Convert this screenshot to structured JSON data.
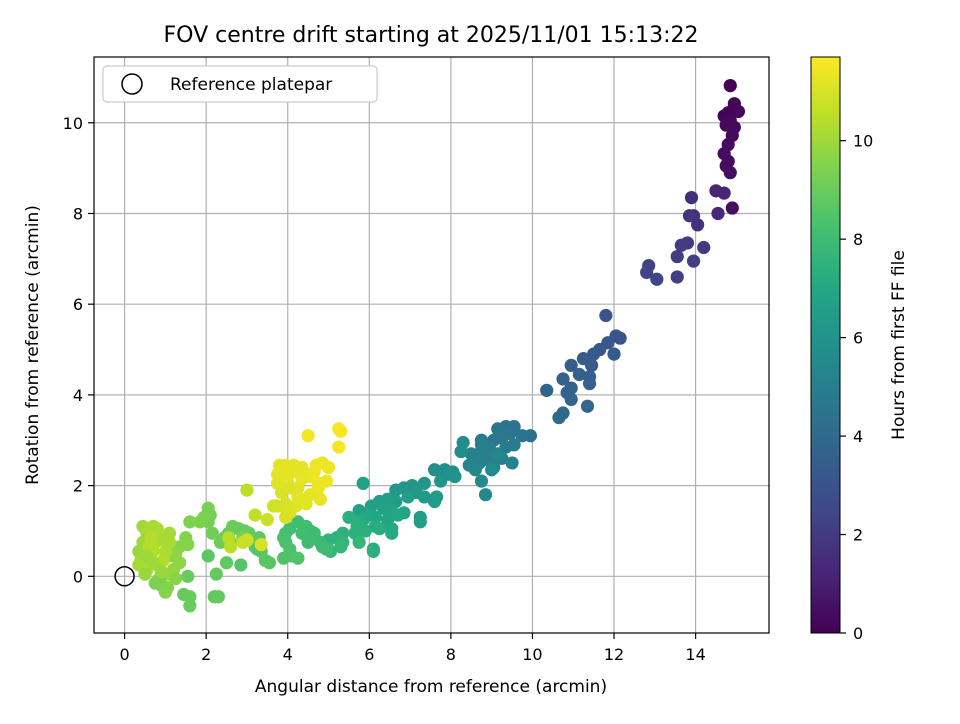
{
  "chart_data": {
    "type": "scatter",
    "title": "FOV centre drift starting at 2025/11/01 15:13:22",
    "xlabel": "Angular distance from reference (arcmin)",
    "ylabel": "Rotation from reference (arcmin)",
    "xlim": [
      -0.75,
      15.8
    ],
    "ylim": [
      -1.25,
      11.45
    ],
    "xticks": [
      0,
      2,
      4,
      6,
      8,
      10,
      12,
      14
    ],
    "yticks": [
      0,
      2,
      4,
      6,
      8,
      10
    ],
    "grid": true,
    "legend": {
      "position": "top-left",
      "entries": [
        "Reference platepar"
      ]
    },
    "reference_point": {
      "label": "Reference platepar",
      "x": 0,
      "y": 0,
      "marker": "open-circle"
    },
    "colorbar": {
      "label": "Hours from first FF file",
      "colormap": "viridis",
      "range": [
        0,
        11.7
      ],
      "ticks": [
        0,
        2,
        4,
        6,
        8,
        10
      ]
    },
    "points": [
      [
        14.85,
        10.82,
        0.05
      ],
      [
        14.8,
        10.22,
        0.08
      ],
      [
        14.95,
        10.42,
        0.12
      ],
      [
        15.05,
        10.25,
        0.15
      ],
      [
        14.7,
        10.15,
        0.18
      ],
      [
        14.85,
        10.05,
        0.22
      ],
      [
        14.75,
        9.95,
        0.25
      ],
      [
        14.95,
        9.9,
        0.28
      ],
      [
        14.9,
        9.72,
        0.3
      ],
      [
        14.8,
        9.52,
        0.32
      ],
      [
        14.7,
        9.32,
        0.35
      ],
      [
        14.8,
        9.15,
        0.38
      ],
      [
        14.75,
        9.05,
        0.4
      ],
      [
        14.85,
        8.9,
        0.42
      ],
      [
        14.9,
        8.12,
        0.45
      ],
      [
        14.5,
        8.5,
        1.2
      ],
      [
        14.7,
        8.45,
        1.3
      ],
      [
        14.55,
        8.0,
        1.35
      ],
      [
        13.9,
        8.35,
        1.5
      ],
      [
        13.95,
        7.95,
        1.6
      ],
      [
        14.05,
        7.75,
        1.7
      ],
      [
        13.85,
        7.95,
        1.8
      ],
      [
        14.2,
        7.25,
        1.9
      ],
      [
        13.8,
        7.35,
        2.0
      ],
      [
        13.65,
        7.3,
        2.05
      ],
      [
        13.55,
        7.05,
        2.1
      ],
      [
        13.95,
        6.95,
        2.15
      ],
      [
        13.55,
        6.6,
        2.2
      ],
      [
        12.85,
        6.85,
        2.3
      ],
      [
        12.8,
        6.7,
        2.35
      ],
      [
        13.05,
        6.55,
        2.4
      ],
      [
        11.8,
        5.75,
        3.0
      ],
      [
        12.05,
        5.3,
        3.1
      ],
      [
        11.85,
        5.15,
        3.15
      ],
      [
        11.65,
        5.0,
        3.2
      ],
      [
        11.5,
        4.9,
        3.25
      ],
      [
        12.0,
        4.9,
        3.3
      ],
      [
        11.25,
        4.8,
        3.35
      ],
      [
        11.45,
        4.65,
        3.4
      ],
      [
        10.95,
        4.65,
        3.45
      ],
      [
        11.4,
        4.4,
        3.5
      ],
      [
        11.15,
        4.45,
        3.55
      ],
      [
        10.75,
        4.35,
        3.6
      ],
      [
        10.95,
        4.15,
        3.65
      ],
      [
        10.85,
        4.05,
        3.7
      ],
      [
        10.35,
        4.1,
        3.75
      ],
      [
        10.95,
        3.9,
        3.8
      ],
      [
        11.35,
        3.75,
        3.85
      ],
      [
        10.75,
        3.6,
        3.9
      ],
      [
        10.65,
        3.5,
        3.95
      ],
      [
        12.15,
        5.25,
        2.95
      ],
      [
        11.4,
        4.25,
        3.6
      ],
      [
        9.95,
        3.1,
        4.3
      ],
      [
        9.75,
        3.1,
        4.4
      ],
      [
        9.55,
        3.3,
        4.45
      ],
      [
        9.35,
        3.3,
        4.5
      ],
      [
        9.15,
        3.25,
        4.55
      ],
      [
        9.45,
        3.15,
        4.6
      ],
      [
        9.25,
        3.05,
        4.65
      ],
      [
        9.05,
        3.0,
        4.7
      ],
      [
        8.75,
        3.0,
        4.75
      ],
      [
        9.55,
        2.9,
        4.8
      ],
      [
        9.35,
        2.85,
        4.85
      ],
      [
        8.95,
        2.8,
        4.9
      ],
      [
        8.75,
        2.75,
        4.95
      ],
      [
        8.95,
        2.55,
        5.0
      ],
      [
        9.25,
        2.6,
        5.05
      ],
      [
        8.5,
        2.7,
        5.1
      ],
      [
        8.7,
        2.5,
        5.15
      ],
      [
        9.5,
        2.5,
        5.2
      ],
      [
        9.05,
        2.4,
        5.25
      ],
      [
        8.45,
        2.45,
        5.3
      ],
      [
        8.6,
        2.35,
        5.35
      ],
      [
        9.15,
        2.7,
        5.4
      ],
      [
        8.85,
        1.8,
        5.45
      ],
      [
        8.75,
        2.1,
        5.5
      ],
      [
        9.0,
        2.35,
        5.55
      ],
      [
        8.75,
        2.9,
        5.0
      ],
      [
        8.3,
        2.95,
        5.6
      ],
      [
        8.25,
        2.75,
        5.65
      ],
      [
        8.05,
        2.3,
        5.7
      ],
      [
        7.85,
        2.35,
        5.75
      ],
      [
        7.75,
        2.3,
        5.8
      ],
      [
        7.6,
        2.35,
        5.85
      ],
      [
        7.95,
        2.25,
        5.9
      ],
      [
        8.1,
        2.2,
        5.95
      ],
      [
        7.75,
        2.1,
        6.0
      ],
      [
        7.35,
        2.05,
        6.05
      ],
      [
        7.05,
        2.0,
        6.1
      ],
      [
        6.85,
        1.95,
        6.15
      ],
      [
        6.65,
        1.9,
        6.2
      ],
      [
        7.15,
        1.85,
        6.25
      ],
      [
        7.35,
        1.75,
        6.3
      ],
      [
        7.65,
        1.75,
        6.35
      ],
      [
        7.6,
        1.65,
        6.4
      ],
      [
        6.95,
        1.75,
        6.45
      ],
      [
        6.65,
        1.65,
        6.5
      ],
      [
        6.45,
        1.7,
        6.55
      ],
      [
        6.25,
        1.65,
        6.6
      ],
      [
        6.05,
        1.55,
        6.65
      ],
      [
        6.35,
        1.5,
        6.7
      ],
      [
        6.55,
        1.45,
        6.75
      ],
      [
        6.85,
        1.4,
        6.8
      ],
      [
        6.45,
        1.25,
        6.85
      ],
      [
        6.7,
        1.35,
        6.9
      ],
      [
        6.15,
        1.3,
        6.95
      ],
      [
        5.95,
        1.35,
        7.0
      ],
      [
        5.75,
        1.45,
        6.65
      ],
      [
        5.85,
        1.25,
        7.05
      ],
      [
        7.25,
        1.3,
        6.4
      ],
      [
        7.25,
        1.2,
        6.45
      ],
      [
        6.55,
        1.05,
        7.1
      ],
      [
        6.55,
        0.95,
        7.15
      ],
      [
        6.25,
        1.05,
        7.2
      ],
      [
        6.15,
        1.1,
        7.25
      ],
      [
        5.75,
        1.2,
        7.3
      ],
      [
        5.5,
        1.3,
        7.35
      ],
      [
        5.9,
        1.0,
        7.4
      ],
      [
        5.65,
        0.95,
        7.45
      ],
      [
        5.35,
        0.95,
        7.5
      ],
      [
        5.2,
        0.85,
        7.55
      ],
      [
        5.0,
        0.8,
        7.6
      ],
      [
        5.35,
        0.75,
        7.65
      ],
      [
        5.75,
        0.75,
        7.7
      ],
      [
        5.3,
        0.65,
        7.75
      ],
      [
        5.05,
        0.55,
        7.8
      ],
      [
        4.8,
        0.75,
        7.85
      ],
      [
        4.85,
        0.65,
        7.9
      ],
      [
        4.95,
        0.6,
        7.95
      ],
      [
        4.65,
        0.85,
        8.0
      ],
      [
        4.5,
        0.75,
        8.05
      ],
      [
        4.65,
        0.95,
        8.05
      ],
      [
        4.45,
        1.1,
        8.1
      ],
      [
        4.25,
        1.2,
        8.1
      ],
      [
        4.05,
        1.05,
        8.15
      ],
      [
        3.95,
        0.95,
        8.2
      ],
      [
        3.9,
        0.85,
        8.25
      ],
      [
        3.95,
        0.75,
        8.3
      ],
      [
        4.05,
        0.6,
        8.35
      ],
      [
        4.1,
        0.45,
        8.4
      ],
      [
        3.9,
        0.4,
        8.45
      ],
      [
        4.25,
        0.4,
        8.5
      ],
      [
        4.55,
        1.0,
        8.0
      ],
      [
        5.85,
        2.05,
        6.65
      ],
      [
        6.1,
        0.6,
        7.3
      ],
      [
        6.1,
        0.55,
        7.35
      ],
      [
        4.35,
        0.95,
        8.1
      ],
      [
        5.7,
        1.1,
        7.4
      ],
      [
        3.45,
        0.35,
        8.6
      ],
      [
        3.55,
        0.3,
        8.65
      ],
      [
        3.35,
        0.55,
        8.7
      ],
      [
        3.2,
        0.7,
        8.75
      ],
      [
        3.3,
        0.85,
        8.8
      ],
      [
        3.05,
        0.95,
        8.85
      ],
      [
        2.95,
        1.0,
        8.9
      ],
      [
        2.8,
        1.05,
        8.95
      ],
      [
        2.65,
        1.1,
        9.0
      ],
      [
        2.55,
        0.95,
        9.0
      ],
      [
        2.45,
        0.85,
        9.05
      ],
      [
        2.35,
        0.75,
        9.1
      ],
      [
        2.15,
        0.95,
        9.15
      ],
      [
        2.05,
        1.2,
        9.2
      ],
      [
        2.1,
        1.35,
        9.25
      ],
      [
        2.05,
        1.5,
        9.3
      ],
      [
        1.95,
        1.3,
        9.35
      ],
      [
        1.85,
        1.2,
        9.4
      ],
      [
        1.6,
        1.2,
        9.45
      ],
      [
        1.5,
        0.85,
        9.5
      ],
      [
        1.55,
        0.7,
        9.55
      ],
      [
        1.35,
        0.65,
        9.6
      ],
      [
        1.25,
        0.5,
        9.65
      ],
      [
        1.15,
        0.45,
        9.7
      ],
      [
        1.35,
        0.3,
        9.75
      ],
      [
        1.2,
        0.15,
        9.8
      ],
      [
        1.05,
        0.05,
        9.85
      ],
      [
        0.85,
        -0.05,
        9.9
      ],
      [
        1.25,
        -0.05,
        9.6
      ],
      [
        1.55,
        0.0,
        9.0
      ],
      [
        0.9,
        -0.2,
        9.2
      ],
      [
        0.85,
        -0.1,
        9.3
      ],
      [
        0.75,
        -0.15,
        9.4
      ],
      [
        1.05,
        -0.25,
        9.5
      ],
      [
        1.0,
        -0.35,
        9.55
      ],
      [
        1.45,
        -0.4,
        8.9
      ],
      [
        1.6,
        -0.45,
        8.95
      ],
      [
        1.6,
        -0.65,
        9.0
      ],
      [
        2.2,
        -0.45,
        8.8
      ],
      [
        2.3,
        -0.45,
        8.85
      ],
      [
        2.25,
        0.05,
        8.9
      ],
      [
        2.05,
        0.45,
        8.7
      ],
      [
        2.5,
        0.3,
        8.75
      ],
      [
        2.85,
        0.25,
        8.6
      ],
      [
        3.2,
        0.65,
        8.7
      ],
      [
        3.05,
        0.8,
        9.15
      ],
      [
        3.25,
        0.6,
        8.6
      ],
      [
        2.9,
        0.85,
        9.3
      ],
      [
        2.6,
        0.75,
        9.4
      ],
      [
        0.35,
        0.55,
        9.9
      ],
      [
        0.45,
        0.75,
        9.95
      ],
      [
        0.55,
        0.95,
        10.0
      ],
      [
        0.45,
        1.1,
        10.05
      ],
      [
        0.6,
        1.05,
        10.1
      ],
      [
        0.7,
        1.1,
        10.15
      ],
      [
        0.8,
        1.05,
        10.2
      ],
      [
        0.85,
        0.9,
        10.25
      ],
      [
        0.75,
        0.75,
        10.3
      ],
      [
        0.6,
        0.65,
        10.35
      ],
      [
        0.7,
        0.55,
        10.4
      ],
      [
        0.55,
        0.45,
        10.0
      ],
      [
        0.4,
        0.35,
        9.95
      ],
      [
        0.35,
        0.25,
        10.1
      ],
      [
        0.55,
        0.15,
        10.2
      ],
      [
        0.8,
        0.25,
        10.3
      ],
      [
        0.95,
        0.35,
        10.35
      ],
      [
        1.0,
        0.55,
        10.25
      ],
      [
        1.1,
        0.75,
        10.2
      ],
      [
        0.95,
        0.8,
        10.15
      ],
      [
        0.5,
        0.05,
        9.9
      ],
      [
        0.7,
        0.3,
        10.0
      ],
      [
        0.9,
        0.1,
        9.9
      ],
      [
        0.65,
        0.85,
        10.4
      ],
      [
        1.1,
        0.95,
        10.1
      ],
      [
        3.0,
        1.9,
        10.5
      ],
      [
        3.2,
        1.35,
        10.6
      ],
      [
        3.5,
        1.25,
        10.8
      ],
      [
        3.65,
        1.55,
        10.9
      ],
      [
        3.95,
        1.6,
        11.0
      ],
      [
        3.85,
        1.85,
        11.05
      ],
      [
        4.0,
        2.05,
        11.1
      ],
      [
        4.25,
        1.95,
        11.15
      ],
      [
        3.95,
        1.5,
        11.05
      ],
      [
        4.05,
        1.4,
        11.0
      ],
      [
        4.2,
        1.55,
        11.1
      ],
      [
        3.95,
        1.3,
        11.0
      ],
      [
        3.75,
        1.55,
        10.95
      ],
      [
        3.75,
        2.05,
        11.15
      ],
      [
        3.75,
        2.25,
        11.2
      ],
      [
        3.8,
        2.45,
        11.25
      ],
      [
        3.95,
        2.45,
        11.25
      ],
      [
        4.1,
        2.3,
        11.2
      ],
      [
        4.15,
        2.45,
        11.3
      ],
      [
        4.35,
        2.4,
        11.3
      ],
      [
        4.55,
        2.2,
        11.35
      ],
      [
        4.65,
        2.3,
        11.35
      ],
      [
        4.75,
        2.05,
        11.4
      ],
      [
        4.8,
        1.7,
        11.3
      ],
      [
        4.45,
        1.6,
        11.2
      ],
      [
        4.25,
        1.75,
        11.2
      ],
      [
        4.55,
        1.8,
        11.25
      ],
      [
        4.75,
        1.95,
        11.35
      ],
      [
        4.95,
        2.1,
        11.4
      ],
      [
        5.0,
        2.4,
        11.45
      ],
      [
        4.85,
        2.5,
        11.45
      ],
      [
        4.7,
        2.45,
        11.4
      ],
      [
        4.35,
        2.15,
        11.3
      ],
      [
        4.25,
        2.35,
        11.25
      ],
      [
        4.5,
        3.1,
        11.5
      ],
      [
        5.25,
        3.25,
        11.6
      ],
      [
        5.3,
        3.2,
        11.6
      ],
      [
        5.25,
        2.85,
        11.55
      ],
      [
        3.95,
        2.1,
        11.1
      ],
      [
        3.35,
        0.7,
        11.0
      ],
      [
        3.0,
        0.8,
        10.9
      ],
      [
        2.9,
        0.75,
        10.7
      ],
      [
        2.55,
        0.85,
        10.4
      ],
      [
        2.6,
        0.65,
        10.45
      ],
      [
        4.0,
        2.2,
        11.2
      ],
      [
        4.05,
        1.95,
        11.1
      ]
    ]
  }
}
